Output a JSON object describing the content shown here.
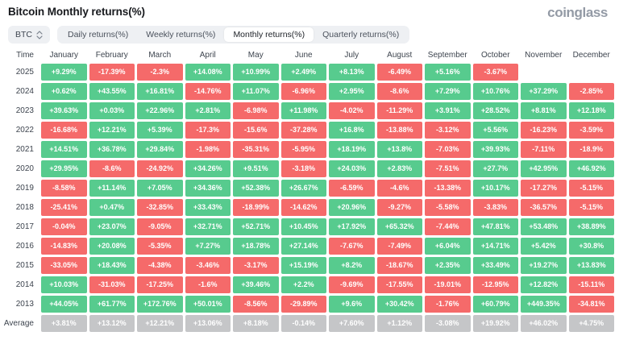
{
  "header": {
    "title": "Bitcoin Monthly returns(%)",
    "logo": "coinglass"
  },
  "filters": {
    "symbol": "BTC",
    "tabs": [
      {
        "label": "Daily returns(%)",
        "selected": false
      },
      {
        "label": "Weekly returns(%)",
        "selected": false
      },
      {
        "label": "Monthly returns(%)",
        "selected": true
      },
      {
        "label": "Quarterly returns(%)",
        "selected": false
      }
    ]
  },
  "colors": {
    "positive": "#57cb8e",
    "negative": "#f56a6a",
    "average": "#c5c6c8"
  },
  "chart_data": {
    "type": "heatmap",
    "title": "Bitcoin Monthly returns(%)",
    "time_header": "Time",
    "months": [
      "January",
      "February",
      "March",
      "April",
      "May",
      "June",
      "July",
      "August",
      "September",
      "October",
      "November",
      "December"
    ],
    "rows": [
      {
        "year": "2025",
        "values": [
          "+9.29%",
          "-17.39%",
          "-2.3%",
          "+14.08%",
          "+10.99%",
          "+2.49%",
          "+8.13%",
          "-6.49%",
          "+5.16%",
          "-3.67%",
          "",
          ""
        ]
      },
      {
        "year": "2024",
        "values": [
          "+0.62%",
          "+43.55%",
          "+16.81%",
          "-14.76%",
          "+11.07%",
          "-6.96%",
          "+2.95%",
          "-8.6%",
          "+7.29%",
          "+10.76%",
          "+37.29%",
          "-2.85%"
        ]
      },
      {
        "year": "2023",
        "values": [
          "+39.63%",
          "+0.03%",
          "+22.96%",
          "+2.81%",
          "-6.98%",
          "+11.98%",
          "-4.02%",
          "-11.29%",
          "+3.91%",
          "+28.52%",
          "+8.81%",
          "+12.18%"
        ]
      },
      {
        "year": "2022",
        "values": [
          "-16.68%",
          "+12.21%",
          "+5.39%",
          "-17.3%",
          "-15.6%",
          "-37.28%",
          "+16.8%",
          "-13.88%",
          "-3.12%",
          "+5.56%",
          "-16.23%",
          "-3.59%"
        ]
      },
      {
        "year": "2021",
        "values": [
          "+14.51%",
          "+36.78%",
          "+29.84%",
          "-1.98%",
          "-35.31%",
          "-5.95%",
          "+18.19%",
          "+13.8%",
          "-7.03%",
          "+39.93%",
          "-7.11%",
          "-18.9%"
        ]
      },
      {
        "year": "2020",
        "values": [
          "+29.95%",
          "-8.6%",
          "-24.92%",
          "+34.26%",
          "+9.51%",
          "-3.18%",
          "+24.03%",
          "+2.83%",
          "-7.51%",
          "+27.7%",
          "+42.95%",
          "+46.92%"
        ]
      },
      {
        "year": "2019",
        "values": [
          "-8.58%",
          "+11.14%",
          "+7.05%",
          "+34.36%",
          "+52.38%",
          "+26.67%",
          "-6.59%",
          "-4.6%",
          "-13.38%",
          "+10.17%",
          "-17.27%",
          "-5.15%"
        ]
      },
      {
        "year": "2018",
        "values": [
          "-25.41%",
          "+0.47%",
          "-32.85%",
          "+33.43%",
          "-18.99%",
          "-14.62%",
          "+20.96%",
          "-9.27%",
          "-5.58%",
          "-3.83%",
          "-36.57%",
          "-5.15%"
        ]
      },
      {
        "year": "2017",
        "values": [
          "-0.04%",
          "+23.07%",
          "-9.05%",
          "+32.71%",
          "+52.71%",
          "+10.45%",
          "+17.92%",
          "+65.32%",
          "-7.44%",
          "+47.81%",
          "+53.48%",
          "+38.89%"
        ]
      },
      {
        "year": "2016",
        "values": [
          "-14.83%",
          "+20.08%",
          "-5.35%",
          "+7.27%",
          "+18.78%",
          "+27.14%",
          "-7.67%",
          "-7.49%",
          "+6.04%",
          "+14.71%",
          "+5.42%",
          "+30.8%"
        ]
      },
      {
        "year": "2015",
        "values": [
          "-33.05%",
          "+18.43%",
          "-4.38%",
          "-3.46%",
          "-3.17%",
          "+15.19%",
          "+8.2%",
          "-18.67%",
          "+2.35%",
          "+33.49%",
          "+19.27%",
          "+13.83%"
        ]
      },
      {
        "year": "2014",
        "values": [
          "+10.03%",
          "-31.03%",
          "-17.25%",
          "-1.6%",
          "+39.46%",
          "+2.2%",
          "-9.69%",
          "-17.55%",
          "-19.01%",
          "-12.95%",
          "+12.82%",
          "-15.11%"
        ]
      },
      {
        "year": "2013",
        "values": [
          "+44.05%",
          "+61.77%",
          "+172.76%",
          "+50.01%",
          "-8.56%",
          "-29.89%",
          "+9.6%",
          "+30.42%",
          "-1.76%",
          "+60.79%",
          "+449.35%",
          "-34.81%"
        ]
      },
      {
        "year": "Average",
        "values": [
          "+3.81%",
          "+13.12%",
          "+12.21%",
          "+13.06%",
          "+8.18%",
          "-0.14%",
          "+7.60%",
          "+1.12%",
          "-3.08%",
          "+19.92%",
          "+46.02%",
          "+4.75%"
        ]
      }
    ]
  }
}
